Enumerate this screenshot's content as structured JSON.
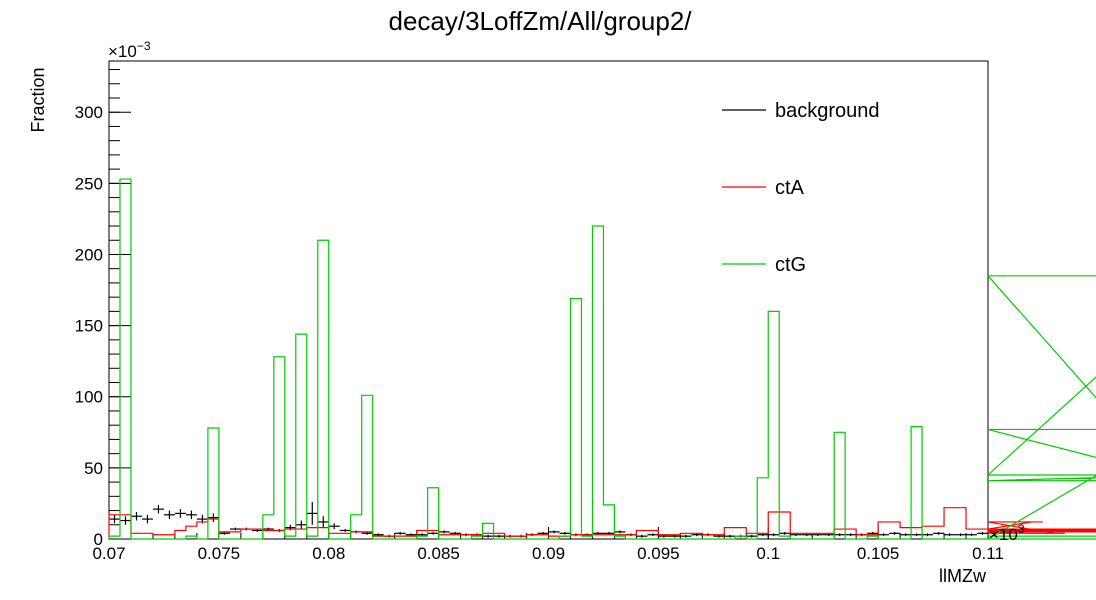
{
  "chart_data": {
    "type": "histogram",
    "title": "decay/3LoffZm/All/group2/",
    "xlabel": "llMZw",
    "ylabel": "Fraction",
    "x_multiplier": "×10",
    "x_multiplier_exp": "3",
    "y_multiplier": "×10",
    "y_multiplier_exp": "−3",
    "xlim": [
      0.07,
      0.11
    ],
    "ylim": [
      0,
      336
    ],
    "bin_width": 0.0005,
    "x_ticks": [
      {
        "v": 0.07,
        "label": "0.07"
      },
      {
        "v": 0.075,
        "label": "0.075"
      },
      {
        "v": 0.08,
        "label": "0.08"
      },
      {
        "v": 0.085,
        "label": "0.085"
      },
      {
        "v": 0.09,
        "label": "0.09"
      },
      {
        "v": 0.095,
        "label": "0.095"
      },
      {
        "v": 0.1,
        "label": "0.1"
      },
      {
        "v": 0.105,
        "label": "0.105"
      },
      {
        "v": 0.11,
        "label": "0.11"
      }
    ],
    "y_ticks": [
      {
        "v": 0,
        "label": "0"
      },
      {
        "v": 50,
        "label": "50"
      },
      {
        "v": 100,
        "label": "100"
      },
      {
        "v": 150,
        "label": "150"
      },
      {
        "v": 200,
        "label": "200"
      },
      {
        "v": 250,
        "label": "250"
      },
      {
        "v": 300,
        "label": "300"
      }
    ],
    "legend_position": "top-right",
    "series": [
      {
        "name": "background",
        "color": "#000000",
        "style": "markers",
        "values": [
          14,
          13,
          16,
          14,
          21,
          17,
          18,
          17,
          14,
          15,
          4,
          7,
          7,
          6,
          7,
          6,
          8,
          10,
          18,
          12,
          9,
          6,
          5,
          4,
          3,
          2,
          4,
          3,
          3,
          4,
          5,
          4,
          3,
          3,
          2,
          2,
          2,
          2,
          3,
          4,
          5,
          4,
          3,
          3,
          4,
          4,
          5,
          3,
          2,
          3,
          2,
          2,
          2,
          3,
          3,
          2,
          2,
          2,
          2,
          3,
          3,
          4,
          3,
          3,
          3,
          3,
          3,
          3,
          3,
          4,
          3,
          4,
          3,
          3,
          3,
          4,
          3,
          3,
          3,
          4
        ],
        "errors": [
          3,
          3,
          3,
          3,
          3,
          3,
          3,
          3,
          3,
          3,
          1,
          1,
          1,
          1,
          1,
          1,
          2,
          3,
          8,
          4,
          2,
          1,
          1,
          1,
          1,
          1,
          1,
          1,
          1,
          1,
          1,
          1,
          1,
          1,
          1,
          1,
          1,
          1,
          1,
          1,
          1,
          1,
          1,
          1,
          1,
          1,
          1,
          1,
          1,
          1,
          1,
          1,
          1,
          1,
          1,
          1,
          1,
          1,
          1,
          1,
          1,
          1,
          1,
          1,
          1,
          1,
          1,
          1,
          1,
          1,
          1,
          1,
          1,
          1,
          1,
          1,
          1,
          1,
          1,
          1
        ]
      },
      {
        "name": "ctA",
        "color": "#ff0000",
        "style": "step",
        "values": [
          17,
          17,
          4,
          4,
          3,
          3,
          6,
          9,
          12,
          14,
          5,
          5,
          7,
          7,
          6,
          6,
          7,
          7,
          8,
          8,
          4,
          4,
          5,
          5,
          2,
          2,
          2,
          2,
          6,
          6,
          3,
          3,
          3,
          3,
          4,
          4,
          2,
          2,
          3,
          3,
          2,
          2,
          3,
          3,
          3,
          3,
          3,
          3,
          6,
          6,
          3,
          3,
          4,
          4,
          3,
          3,
          8,
          8,
          4,
          4,
          19,
          19,
          4,
          4,
          4,
          4,
          7,
          7,
          3,
          3,
          12,
          12,
          8,
          8,
          9,
          9,
          22,
          22,
          7,
          7,
          5,
          5,
          7,
          7,
          12,
          12,
          4,
          4,
          7,
          7,
          5,
          5,
          6,
          6,
          7,
          7,
          5,
          5,
          5,
          5
        ]
      },
      {
        "name": "ctG",
        "color": "#00cc00",
        "style": "step",
        "values": [
          2,
          253,
          0,
          0,
          0,
          0,
          0,
          2,
          0,
          78,
          0,
          0,
          0,
          0,
          17,
          128,
          2,
          144,
          2,
          210,
          0,
          0,
          17,
          101,
          0,
          0,
          0,
          0,
          2,
          36,
          0,
          0,
          0,
          2,
          11,
          0,
          0,
          0,
          0,
          0,
          0,
          2,
          169,
          2,
          220,
          24,
          2,
          0,
          0,
          0,
          0,
          0,
          0,
          0,
          0,
          0,
          0,
          2,
          0,
          43,
          160,
          2,
          0,
          0,
          0,
          0,
          75,
          0,
          0,
          2,
          0,
          0,
          0,
          79,
          0,
          0,
          0,
          0,
          0,
          0,
          0,
          0,
          0,
          0,
          0,
          0,
          0,
          0,
          0,
          0,
          0,
          0,
          0,
          0,
          0,
          0,
          0,
          77,
          41,
          45,
          185,
          2
        ]
      }
    ]
  }
}
